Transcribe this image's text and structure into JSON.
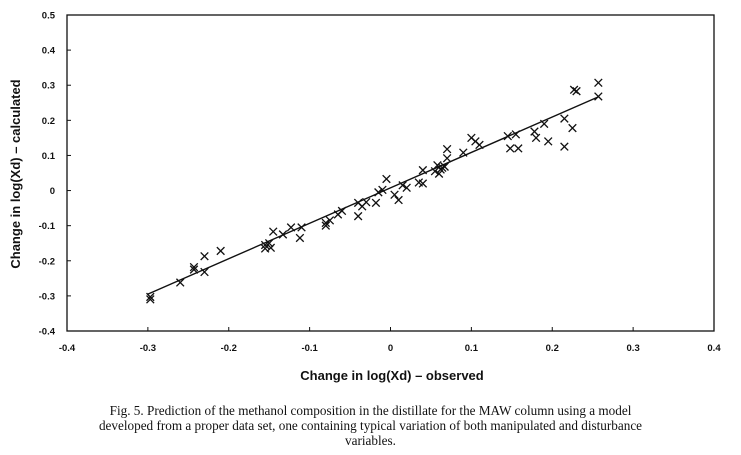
{
  "chart_data": {
    "type": "scatter",
    "xlabel": "Change in log(Xd) – observed",
    "ylabel": "Change in log(Xd) – calculated",
    "xlim": [
      -0.4,
      0.4
    ],
    "ylim": [
      -0.4,
      0.5
    ],
    "x_ticks": [
      "-0.4",
      "-0.3",
      "-0.2",
      "-0.1",
      "0",
      "0.1",
      "0.2",
      "0.3",
      "0.4"
    ],
    "y_ticks": [
      "0.5",
      "0.4",
      "0.3",
      "0.2",
      "0.1",
      "0",
      "-0.1",
      "-0.2",
      "-0.3",
      "-0.4"
    ],
    "grid": false,
    "marker": "x",
    "fit_line": {
      "x": [
        -0.3,
        0.258
      ],
      "y": [
        -0.295,
        0.268
      ]
    },
    "points": [
      [
        -0.297,
        -0.303
      ],
      [
        -0.297,
        -0.31
      ],
      [
        -0.26,
        -0.262
      ],
      [
        -0.243,
        -0.218
      ],
      [
        -0.243,
        -0.225
      ],
      [
        -0.23,
        -0.187
      ],
      [
        -0.23,
        -0.232
      ],
      [
        -0.21,
        -0.172
      ],
      [
        -0.155,
        -0.155
      ],
      [
        -0.155,
        -0.165
      ],
      [
        -0.15,
        -0.15
      ],
      [
        -0.148,
        -0.163
      ],
      [
        -0.145,
        -0.117
      ],
      [
        -0.133,
        -0.125
      ],
      [
        -0.123,
        -0.105
      ],
      [
        -0.112,
        -0.135
      ],
      [
        -0.11,
        -0.105
      ],
      [
        -0.08,
        -0.092
      ],
      [
        -0.08,
        -0.1
      ],
      [
        -0.075,
        -0.085
      ],
      [
        -0.065,
        -0.068
      ],
      [
        -0.06,
        -0.058
      ],
      [
        -0.04,
        -0.073
      ],
      [
        -0.04,
        -0.035
      ],
      [
        -0.035,
        -0.045
      ],
      [
        -0.03,
        -0.033
      ],
      [
        -0.018,
        -0.035
      ],
      [
        -0.015,
        -0.005
      ],
      [
        -0.01,
        0.002
      ],
      [
        -0.005,
        0.033
      ],
      [
        0.005,
        -0.012
      ],
      [
        0.01,
        -0.027
      ],
      [
        0.015,
        0.015
      ],
      [
        0.02,
        0.008
      ],
      [
        0.035,
        0.023
      ],
      [
        0.04,
        0.02
      ],
      [
        0.04,
        0.058
      ],
      [
        0.055,
        0.055
      ],
      [
        0.058,
        0.072
      ],
      [
        0.06,
        0.048
      ],
      [
        0.062,
        0.06
      ],
      [
        0.064,
        0.065
      ],
      [
        0.067,
        0.068
      ],
      [
        0.07,
        0.092
      ],
      [
        0.07,
        0.118
      ],
      [
        0.09,
        0.108
      ],
      [
        0.1,
        0.15
      ],
      [
        0.105,
        0.14
      ],
      [
        0.11,
        0.13
      ],
      [
        0.145,
        0.155
      ],
      [
        0.148,
        0.12
      ],
      [
        0.155,
        0.16
      ],
      [
        0.158,
        0.12
      ],
      [
        0.178,
        0.168
      ],
      [
        0.18,
        0.15
      ],
      [
        0.19,
        0.19
      ],
      [
        0.195,
        0.14
      ],
      [
        0.215,
        0.205
      ],
      [
        0.215,
        0.125
      ],
      [
        0.225,
        0.178
      ],
      [
        0.227,
        0.287
      ],
      [
        0.23,
        0.283
      ],
      [
        0.257,
        0.307
      ],
      [
        0.257,
        0.268
      ]
    ]
  },
  "caption": {
    "line1": "Fig. 5.  Prediction of the methanol composition in the distillate for the MAW column using a model",
    "line2": "developed from a proper data set, one containing typical variation of both manipulated and disturbance",
    "line3": "variables."
  }
}
